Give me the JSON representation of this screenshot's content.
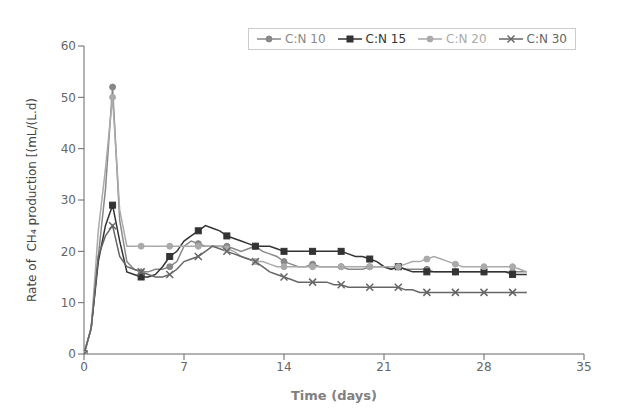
{
  "chart_data": {
    "type": "line",
    "xlabel": "Time (days)",
    "ylabel": "Rate of  CH₄ production [(mL/(L.d)",
    "xlim": [
      0,
      35
    ],
    "ylim": [
      0,
      60
    ],
    "xticks": [
      0,
      7,
      14,
      21,
      28,
      35
    ],
    "yticks": [
      0,
      10,
      20,
      30,
      40,
      50,
      60
    ],
    "grid": false,
    "legend": "upper right",
    "x": [
      0,
      0.5,
      1.0,
      1.5,
      2.0,
      2.5,
      3.0,
      3.5,
      4.0,
      4.5,
      5.0,
      5.5,
      6.0,
      6.5,
      7.0,
      7.5,
      8.0,
      8.5,
      9.0,
      9.5,
      10.0,
      10.5,
      11.0,
      11.5,
      12.0,
      12.5,
      13.0,
      13.5,
      14.0,
      14.5,
      15.0,
      15.5,
      16.0,
      16.5,
      17.0,
      17.5,
      18.0,
      18.5,
      19.0,
      19.5,
      20.0,
      20.5,
      21.0,
      21.5,
      22.0,
      22.5,
      23.0,
      23.5,
      24.0,
      24.5,
      25.0,
      25.5,
      26.0,
      26.5,
      27.0,
      27.5,
      28.0,
      28.5,
      29.0,
      29.5,
      30.0,
      30.5,
      31.0
    ],
    "series": [
      {
        "name": "C:N 10",
        "color": "#888888",
        "marker": "circle",
        "values": [
          0,
          5,
          19,
          32,
          52,
          26,
          18,
          16.5,
          16,
          16,
          16.5,
          16.5,
          17,
          18,
          21,
          22,
          21.5,
          21,
          21,
          21,
          21,
          20.5,
          20,
          20.5,
          21,
          20,
          19.5,
          19,
          18,
          17.5,
          17,
          17,
          17.5,
          17,
          17,
          17,
          17,
          16.5,
          16.5,
          16.5,
          17,
          17,
          17,
          16.5,
          17,
          16.5,
          16.5,
          16.5,
          16.5,
          16,
          16,
          16,
          16,
          16,
          16,
          16,
          16,
          16,
          16,
          16,
          16,
          16,
          16
        ]
      },
      {
        "name": "C:N 15",
        "color": "#333333",
        "marker": "square",
        "values": [
          0,
          5,
          18,
          25,
          29,
          22,
          16,
          15.5,
          15,
          15,
          15.5,
          17,
          19,
          20,
          22,
          23,
          24,
          25,
          24.5,
          24,
          23,
          22.5,
          22,
          21.5,
          21,
          21,
          21,
          20.5,
          20,
          20,
          20,
          20,
          20,
          20,
          20,
          20,
          20,
          19.5,
          19,
          19,
          18.5,
          18,
          17,
          16.5,
          17,
          16.5,
          16,
          16,
          16,
          16,
          16,
          16,
          16,
          16,
          16,
          16,
          16,
          16,
          16,
          16,
          15.5,
          15.5,
          15.5
        ]
      },
      {
        "name": "C:N 20",
        "color": "#aaaaaa",
        "marker": "circle",
        "values": [
          0,
          5,
          24,
          36,
          50,
          28,
          21,
          21,
          21,
          21,
          21,
          21,
          21,
          21,
          21,
          21,
          21,
          21,
          21,
          21,
          20.5,
          20,
          19,
          18.5,
          18,
          18,
          17.5,
          17,
          17,
          17,
          17,
          17,
          17,
          17,
          17,
          17,
          17,
          17,
          17,
          17,
          17,
          17,
          17,
          17,
          17,
          17.5,
          18,
          18,
          18.5,
          19,
          18.5,
          18,
          17.5,
          17,
          17,
          17,
          17,
          17,
          17,
          17,
          17,
          16.5,
          16
        ]
      },
      {
        "name": "C:N 30",
        "color": "#666666",
        "marker": "x",
        "values": [
          0,
          5,
          19,
          23,
          25,
          19,
          17,
          16.5,
          16,
          15.5,
          15,
          15,
          15.5,
          16.5,
          18,
          18.5,
          19,
          20,
          21,
          20.5,
          20,
          19.5,
          19,
          18.5,
          18,
          17,
          16,
          15.5,
          15,
          14.5,
          14,
          14,
          14,
          14,
          14,
          13.5,
          13.5,
          13,
          13,
          13,
          13,
          13,
          13,
          13,
          13,
          12.5,
          12.5,
          12,
          12,
          12,
          12,
          12,
          12,
          12,
          12,
          12,
          12,
          12,
          12,
          12,
          12,
          12,
          12
        ]
      }
    ]
  }
}
